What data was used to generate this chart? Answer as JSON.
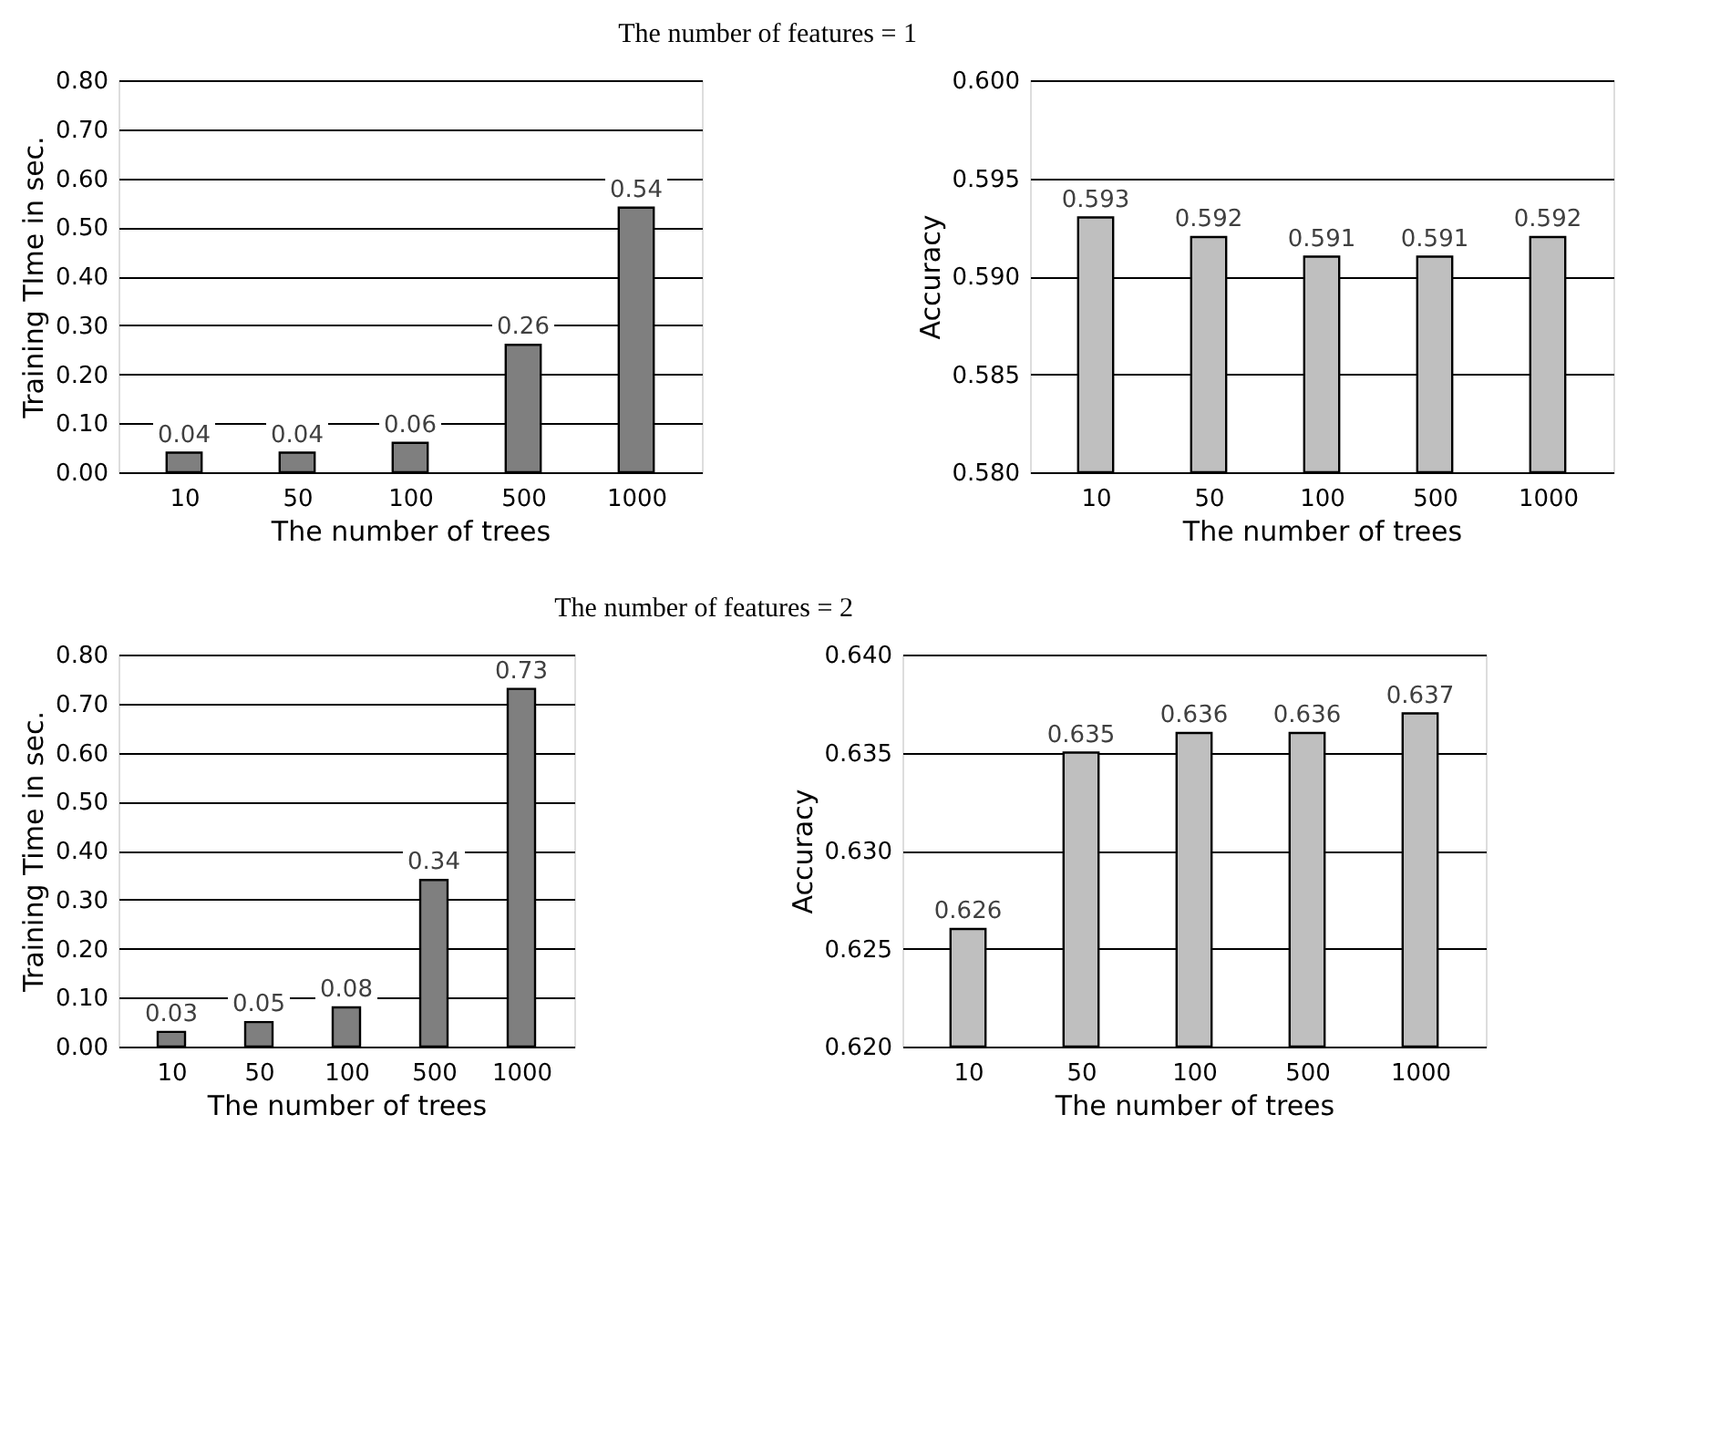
{
  "chart_data": [
    {
      "type": "bar",
      "title": "The number of features = 1",
      "xlabel": "The number of trees",
      "ylabel": "Training TIme in sec.",
      "categories": [
        "10",
        "50",
        "100",
        "500",
        "1000"
      ],
      "values": [
        0.04,
        0.04,
        0.06,
        0.26,
        0.54
      ],
      "color": "#7f7f7f",
      "ylim": [
        0,
        0.8
      ],
      "yticks": [
        {
          "value": 0,
          "label": "0.00"
        },
        {
          "value": 0.1,
          "label": "0.10"
        },
        {
          "value": 0.2,
          "label": "0.20"
        },
        {
          "value": 0.3,
          "label": "0.30"
        },
        {
          "value": 0.4,
          "label": "0.40"
        },
        {
          "value": 0.5,
          "label": "0.50"
        },
        {
          "value": 0.6,
          "label": "0.60"
        },
        {
          "value": 0.7,
          "label": "0.70"
        },
        {
          "value": 0.8,
          "label": "0.80"
        }
      ],
      "grid": "y",
      "data_labels": true
    },
    {
      "type": "bar",
      "xlabel": "The number of trees",
      "ylabel": "Accuracy",
      "categories": [
        "10",
        "50",
        "100",
        "500",
        "1000"
      ],
      "values": [
        0.593,
        0.592,
        0.591,
        0.591,
        0.592
      ],
      "color": "#bfbfbf",
      "ylim": [
        0.58,
        0.6
      ],
      "yticks": [
        {
          "value": 0.58,
          "label": "0.580"
        },
        {
          "value": 0.585,
          "label": "0.585"
        },
        {
          "value": 0.59,
          "label": "0.590"
        },
        {
          "value": 0.595,
          "label": "0.595"
        },
        {
          "value": 0.6,
          "label": "0.600"
        }
      ],
      "grid": "y",
      "data_labels": true
    },
    {
      "type": "bar",
      "xlabel": "The number of trees",
      "ylabel": "Training Time in sec.",
      "categories": [
        "10",
        "50",
        "100",
        "500",
        "1000"
      ],
      "title": "The number of features = 2",
      "values": [
        0.03,
        0.05,
        0.08,
        0.34,
        0.73
      ],
      "color": "#7f7f7f",
      "ylim": [
        0,
        0.8
      ],
      "yticks": [
        {
          "value": 0,
          "label": "0.00"
        },
        {
          "value": 0.1,
          "label": "0.10"
        },
        {
          "value": 0.2,
          "label": "0.20"
        },
        {
          "value": 0.3,
          "label": "0.30"
        },
        {
          "value": 0.4,
          "label": "0.40"
        },
        {
          "value": 0.5,
          "label": "0.50"
        },
        {
          "value": 0.6,
          "label": "0.60"
        },
        {
          "value": 0.7,
          "label": "0.70"
        },
        {
          "value": 0.8,
          "label": "0.80"
        }
      ],
      "grid": "y",
      "data_labels": true
    },
    {
      "type": "bar",
      "xlabel": "The number of trees",
      "ylabel": "Accuracy",
      "categories": [
        "10",
        "50",
        "100",
        "500",
        "1000"
      ],
      "values": [
        0.626,
        0.635,
        0.636,
        0.636,
        0.637
      ],
      "color": "#bfbfbf",
      "ylim": [
        0.62,
        0.64
      ],
      "yticks": [
        {
          "value": 0.62,
          "label": "0.620"
        },
        {
          "value": 0.625,
          "label": "0.625"
        },
        {
          "value": 0.63,
          "label": "0.630"
        },
        {
          "value": 0.635,
          "label": "0.635"
        },
        {
          "value": 0.64,
          "label": "0.640"
        }
      ],
      "grid": "y",
      "data_labels": true
    }
  ]
}
